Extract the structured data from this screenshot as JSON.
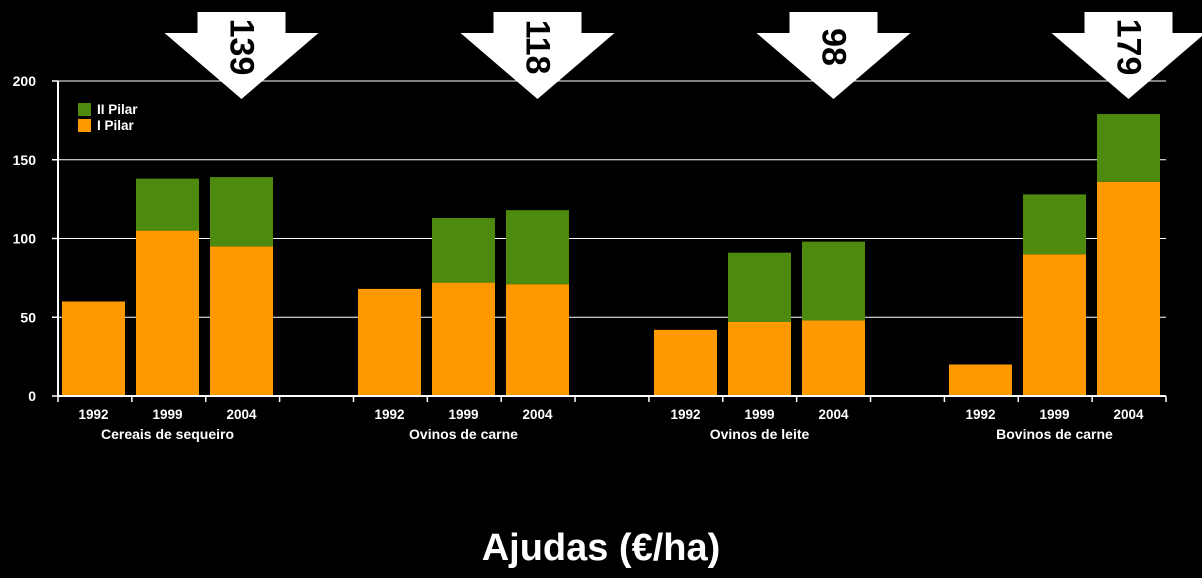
{
  "chart_data": {
    "type": "bar",
    "stacked": true,
    "title": "Ajudas (€/ha)",
    "xlabel": "",
    "ylabel": "",
    "ylim": [
      0,
      200
    ],
    "yticks": [
      "0",
      "50",
      "100",
      "150",
      "200"
    ],
    "grid": true,
    "legend_position": "top-left",
    "groups": [
      {
        "label": "Cereais de sequeiro",
        "total_label": "139",
        "years": [
          "1992",
          "1999",
          "2004"
        ],
        "i_pilar": [
          60,
          105,
          95
        ],
        "ii_pilar": [
          0,
          33,
          44
        ]
      },
      {
        "label": "Ovinos de carne",
        "total_label": "118",
        "years": [
          "1992",
          "1999",
          "2004"
        ],
        "i_pilar": [
          68,
          72,
          71
        ],
        "ii_pilar": [
          0,
          41,
          47
        ]
      },
      {
        "label": "Ovinos de leite",
        "total_label": "98",
        "years": [
          "1992",
          "1999",
          "2004"
        ],
        "i_pilar": [
          42,
          47,
          48
        ],
        "ii_pilar": [
          0,
          44,
          50
        ]
      },
      {
        "label": "Bovinos de carne",
        "total_label": "179",
        "years": [
          "1992",
          "1999",
          "2004"
        ],
        "i_pilar": [
          20,
          90,
          136
        ],
        "ii_pilar": [
          0,
          38,
          43
        ]
      }
    ],
    "series": [
      {
        "name": "II Pilar",
        "key": "ii_pilar",
        "color": "#4e8a0e"
      },
      {
        "name": "I Pilar",
        "key": "i_pilar",
        "color": "#ff9900"
      }
    ],
    "colors": {
      "background": "#000000",
      "axis": "#ffffff",
      "arrow": "#ffffff",
      "arrow_text": "#000000"
    }
  }
}
